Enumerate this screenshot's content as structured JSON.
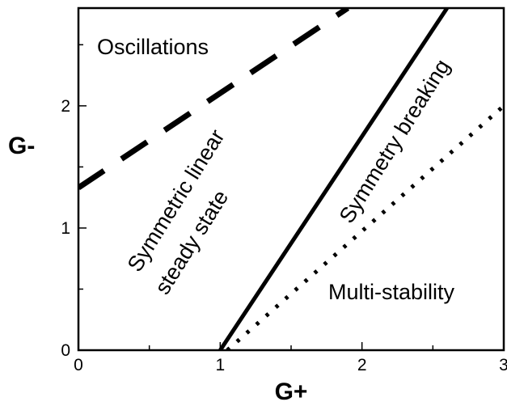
{
  "chart_data": {
    "type": "line",
    "xlabel": "G+",
    "ylabel": "G-",
    "xlim": [
      0,
      3
    ],
    "ylim": [
      0,
      2.8
    ],
    "xticks": [
      "0",
      "1",
      "2",
      "3"
    ],
    "yticks": [
      "0",
      "1",
      "2"
    ],
    "grid": false,
    "series": [
      {
        "style": "dashed",
        "x": [
          0,
          1.9
        ],
        "y": [
          1.33,
          2.8
        ]
      },
      {
        "style": "solid",
        "x": [
          1.0,
          2.6
        ],
        "y": [
          0,
          2.8
        ]
      },
      {
        "style": "dotted",
        "x": [
          1.05,
          3.0
        ],
        "y": [
          0,
          2.0
        ]
      }
    ],
    "regions": {
      "oscillations": "Oscillations",
      "symmetric_line1": "Symmetric linear",
      "symmetric_line2": "steady state",
      "symmetry_breaking": "Symmetry breaking",
      "multistability": "Multi-stability"
    }
  }
}
